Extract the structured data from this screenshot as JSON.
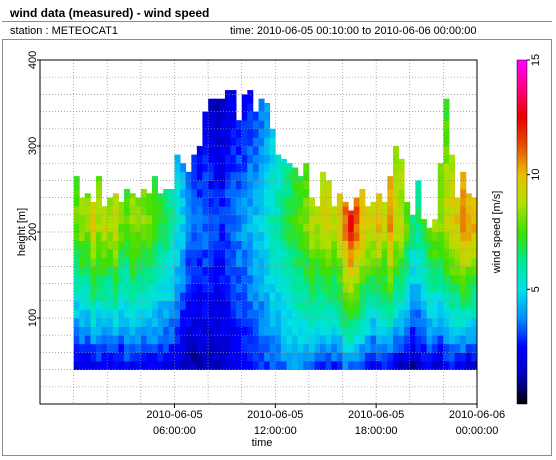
{
  "header": {
    "title": "wind data (measured) - wind speed",
    "station": "station : METEOCAT1",
    "period": "time: 2010-06-05 00:10:00 to 2010-06-06 00:00:00"
  },
  "chart_data": {
    "type": "heatmap",
    "title": "wind data (measured) - wind speed",
    "xlabel": "time",
    "ylabel": "height [m]",
    "colorbar_label": "wind speed [m/s]",
    "xlim": [
      -2,
      24
    ],
    "ylim": [
      0,
      400
    ],
    "clim": [
      0,
      15
    ],
    "grid": true,
    "x_ticks": [
      {
        "value": 6,
        "label_date": "2010-06-05",
        "label_time": "06:00:00"
      },
      {
        "value": 12,
        "label_date": "2010-06-05",
        "label_time": "12:00:00"
      },
      {
        "value": 18,
        "label_date": "2010-06-05",
        "label_time": "18:00:00"
      },
      {
        "value": 24,
        "label_date": "2010-06-06",
        "label_time": "00:00:00"
      }
    ],
    "y_ticks": [
      100,
      200,
      300,
      400
    ],
    "colorbar_ticks": [
      5,
      10,
      15
    ],
    "colormap": [
      "#000000",
      "#0000c0",
      "#0000ff",
      "#0090ff",
      "#00e0e8",
      "#00e890",
      "#40e000",
      "#b0e000",
      "#e8c000",
      "#e85000",
      "#e80000",
      "#ff0080",
      "#ff00ff"
    ],
    "time_hours": [
      0.17,
      0.5,
      0.83,
      1.17,
      1.5,
      1.83,
      2.17,
      2.5,
      2.83,
      3.17,
      3.5,
      3.83,
      4.17,
      4.5,
      4.83,
      5.17,
      5.5,
      5.83,
      6.17,
      6.5,
      6.83,
      7.17,
      7.5,
      7.83,
      8.17,
      8.5,
      8.83,
      9.17,
      9.5,
      9.83,
      10.17,
      10.5,
      10.83,
      11.17,
      11.5,
      11.83,
      12.17,
      12.5,
      12.83,
      13.17,
      13.5,
      13.83,
      14.17,
      14.5,
      14.83,
      15.17,
      15.5,
      15.83,
      16.17,
      16.5,
      16.83,
      17.17,
      17.5,
      17.83,
      18.17,
      18.5,
      18.83,
      19.17,
      19.5,
      19.83,
      20.17,
      20.5,
      20.83,
      21.17,
      21.5,
      21.83,
      22.17,
      22.5,
      22.83,
      23.17,
      23.5,
      23.83
    ],
    "profile_top_m": [
      265,
      240,
      245,
      235,
      265,
      230,
      240,
      245,
      235,
      250,
      245,
      240,
      250,
      245,
      265,
      245,
      250,
      250,
      290,
      280,
      270,
      290,
      300,
      340,
      355,
      355,
      355,
      365,
      365,
      330,
      360,
      365,
      340,
      355,
      350,
      320,
      290,
      285,
      280,
      275,
      265,
      280,
      240,
      230,
      270,
      260,
      230,
      245,
      235,
      225,
      240,
      250,
      230,
      235,
      245,
      235,
      265,
      300,
      285,
      235,
      220,
      260,
      215,
      205,
      215,
      280,
      355,
      290,
      240,
      270,
      245,
      240
    ],
    "speed_low_m_s": [
      1.5,
      1.7,
      1.3,
      1.5,
      2.0,
      1.6,
      1.7,
      1.9,
      1.4,
      2.2,
      2.0,
      1.9,
      1.5,
      1.8,
      2.1,
      1.9,
      2.0,
      2.0,
      1.5,
      1.3,
      1.1,
      0.9,
      1.2,
      1.2,
      1.1,
      1.3,
      1.5,
      1.4,
      1.8,
      2.2,
      2.0,
      2.4,
      2.5,
      2.7,
      3.0,
      3.2,
      3.3,
      3.4,
      3.5,
      3.6,
      3.6,
      3.3,
      3.0,
      2.8,
      2.5,
      2.5,
      2.4,
      2.7,
      3.2,
      2.8,
      2.6,
      2.4,
      1.9,
      1.5,
      1.8,
      2.5,
      1.8,
      1.3,
      1.1,
      0.8,
      0.7,
      1.2,
      1.6,
      1.8,
      1.4,
      1.1,
      1.9,
      2.1,
      1.7,
      1.4,
      1.1,
      1.2
    ],
    "speed_high_m_s": [
      8.0,
      8.5,
      8.4,
      9.8,
      8.6,
      9.1,
      8.8,
      9.4,
      8.2,
      7.8,
      8.6,
      8.5,
      8.3,
      8.1,
      7.5,
      7.0,
      6.8,
      6.2,
      5.5,
      4.8,
      3.8,
      3.4,
      3.3,
      3.5,
      3.2,
      3.0,
      2.9,
      3.4,
      3.6,
      3.8,
      4.0,
      4.3,
      4.5,
      4.9,
      5.3,
      5.8,
      6.0,
      6.4,
      7.0,
      7.4,
      7.8,
      8.2,
      9.0,
      8.8,
      9.4,
      9.6,
      9.0,
      9.8,
      11.0,
      12.4,
      11.3,
      10.2,
      9.6,
      9.4,
      10.0,
      9.2,
      10.8,
      9.3,
      9.1,
      8.0,
      6.6,
      6.4,
      7.0,
      8.1,
      8.6,
      8.4,
      9.0,
      9.6,
      9.8,
      11.0,
      10.6,
      10.2
    ]
  }
}
